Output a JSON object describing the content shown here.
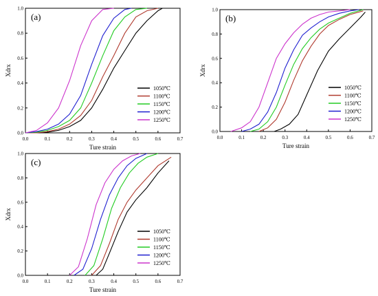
{
  "chart_data": [
    {
      "type": "line",
      "panel_label": "(a)",
      "xlabel": "Ture strain",
      "ylabel": "Xdrx",
      "xlim": [
        0.0,
        0.7
      ],
      "ylim": [
        0.0,
        1.0
      ],
      "x_ticks": [
        "0.0",
        "0.1",
        "0.2",
        "0.3",
        "0.4",
        "0.5",
        "0.6",
        "0.7"
      ],
      "y_ticks": [
        "0.0",
        "0.2",
        "0.4",
        "0.6",
        "0.8",
        "1.0"
      ],
      "legend_position": "lower-right",
      "series": [
        {
          "name": "1050℃",
          "color": "#000000",
          "x": [
            0.0,
            0.05,
            0.1,
            0.15,
            0.2,
            0.25,
            0.3,
            0.35,
            0.4,
            0.45,
            0.5,
            0.55,
            0.6,
            0.62
          ],
          "y": [
            0.0,
            0.0,
            0.005,
            0.02,
            0.05,
            0.1,
            0.2,
            0.35,
            0.52,
            0.66,
            0.8,
            0.9,
            0.98,
            1.0
          ]
        },
        {
          "name": "1100℃",
          "color": "#b03a2e",
          "x": [
            0.0,
            0.05,
            0.1,
            0.15,
            0.2,
            0.25,
            0.3,
            0.35,
            0.4,
            0.45,
            0.5,
            0.55,
            0.6
          ],
          "y": [
            0.0,
            0.0,
            0.01,
            0.03,
            0.07,
            0.14,
            0.26,
            0.45,
            0.62,
            0.8,
            0.93,
            0.98,
            1.0
          ]
        },
        {
          "name": "1150℃",
          "color": "#22cc22",
          "x": [
            0.0,
            0.05,
            0.1,
            0.15,
            0.2,
            0.25,
            0.3,
            0.35,
            0.4,
            0.45,
            0.5,
            0.55
          ],
          "y": [
            0.0,
            0.005,
            0.02,
            0.05,
            0.1,
            0.2,
            0.4,
            0.62,
            0.82,
            0.93,
            0.99,
            1.0
          ]
        },
        {
          "name": "1200℃",
          "color": "#1f1fd0",
          "x": [
            0.0,
            0.05,
            0.1,
            0.15,
            0.2,
            0.25,
            0.3,
            0.35,
            0.4,
            0.45,
            0.48
          ],
          "y": [
            0.0,
            0.01,
            0.03,
            0.07,
            0.15,
            0.3,
            0.55,
            0.78,
            0.92,
            0.99,
            1.0
          ]
        },
        {
          "name": "1250℃",
          "color": "#cc33cc",
          "x": [
            0.0,
            0.05,
            0.1,
            0.15,
            0.2,
            0.25,
            0.3,
            0.35,
            0.4
          ],
          "y": [
            0.0,
            0.02,
            0.08,
            0.2,
            0.42,
            0.7,
            0.9,
            0.99,
            1.0
          ]
        }
      ]
    },
    {
      "type": "line",
      "panel_label": "(b)",
      "xlabel": "Ture strain",
      "ylabel": "Xdrx",
      "xlim": [
        0.0,
        0.7
      ],
      "ylim": [
        0.0,
        1.0
      ],
      "x_ticks": [
        "0.0",
        "0.1",
        "0.2",
        "0.3",
        "0.4",
        "0.5",
        "0.6",
        "0.7"
      ],
      "y_ticks": [
        "0.0",
        "0.2",
        "0.4",
        "0.6",
        "0.8",
        "1.0"
      ],
      "legend_position": "lower-right",
      "series": [
        {
          "name": "1050℃",
          "color": "#000000",
          "x": [
            0.25,
            0.28,
            0.32,
            0.36,
            0.4,
            0.45,
            0.5,
            0.55,
            0.6,
            0.65,
            0.67
          ],
          "y": [
            0.0,
            0.02,
            0.06,
            0.14,
            0.3,
            0.5,
            0.66,
            0.76,
            0.85,
            0.94,
            0.98
          ]
        },
        {
          "name": "1100℃",
          "color": "#b03a2e",
          "x": [
            0.18,
            0.22,
            0.26,
            0.3,
            0.34,
            0.38,
            0.42,
            0.46,
            0.5,
            0.55,
            0.6,
            0.66
          ],
          "y": [
            0.0,
            0.03,
            0.1,
            0.24,
            0.42,
            0.58,
            0.7,
            0.8,
            0.87,
            0.92,
            0.96,
            0.99
          ]
        },
        {
          "name": "1150℃",
          "color": "#22cc22",
          "x": [
            0.14,
            0.18,
            0.22,
            0.26,
            0.3,
            0.34,
            0.38,
            0.42,
            0.46,
            0.5,
            0.55,
            0.6,
            0.66
          ],
          "y": [
            0.0,
            0.02,
            0.08,
            0.2,
            0.38,
            0.55,
            0.68,
            0.77,
            0.84,
            0.89,
            0.93,
            0.97,
            1.0
          ]
        },
        {
          "name": "1200℃",
          "color": "#1f1fd0",
          "x": [
            0.1,
            0.14,
            0.18,
            0.22,
            0.26,
            0.3,
            0.34,
            0.38,
            0.42,
            0.46,
            0.5,
            0.55,
            0.6,
            0.64
          ],
          "y": [
            0.0,
            0.02,
            0.06,
            0.16,
            0.32,
            0.52,
            0.67,
            0.79,
            0.85,
            0.9,
            0.94,
            0.97,
            0.99,
            1.0
          ]
        },
        {
          "name": "1250℃",
          "color": "#cc33cc",
          "x": [
            0.05,
            0.1,
            0.14,
            0.18,
            0.22,
            0.26,
            0.3,
            0.34,
            0.38,
            0.42,
            0.46,
            0.5,
            0.55,
            0.6
          ],
          "y": [
            0.0,
            0.03,
            0.08,
            0.2,
            0.4,
            0.6,
            0.72,
            0.81,
            0.88,
            0.93,
            0.96,
            0.98,
            0.99,
            1.0
          ]
        }
      ]
    },
    {
      "type": "line",
      "panel_label": "(c)",
      "xlabel": "Ture strain",
      "ylabel": "Xdrx",
      "xlim": [
        0.0,
        0.7
      ],
      "ylim": [
        0.0,
        1.0
      ],
      "x_ticks": [
        "0.0",
        "0.1",
        "0.2",
        "0.3",
        "0.4",
        "0.5",
        "0.6",
        "0.7"
      ],
      "y_ticks": [
        "0.0",
        "0.2",
        "0.4",
        "0.6",
        "0.8",
        "1.0"
      ],
      "legend_position": "lower-right",
      "series": [
        {
          "name": "1050℃",
          "color": "#000000",
          "x": [
            0.32,
            0.35,
            0.38,
            0.42,
            0.46,
            0.5,
            0.55,
            0.6,
            0.65
          ],
          "y": [
            0.0,
            0.05,
            0.18,
            0.36,
            0.52,
            0.62,
            0.72,
            0.84,
            0.94
          ]
        },
        {
          "name": "1100℃",
          "color": "#b03a2e",
          "x": [
            0.3,
            0.34,
            0.38,
            0.42,
            0.46,
            0.5,
            0.55,
            0.6,
            0.66
          ],
          "y": [
            0.0,
            0.08,
            0.26,
            0.46,
            0.6,
            0.7,
            0.8,
            0.9,
            0.97
          ]
        },
        {
          "name": "1150℃",
          "color": "#22cc22",
          "x": [
            0.27,
            0.31,
            0.35,
            0.39,
            0.43,
            0.47,
            0.51,
            0.55,
            0.6
          ],
          "y": [
            0.0,
            0.08,
            0.3,
            0.55,
            0.72,
            0.84,
            0.92,
            0.97,
            1.0
          ]
        },
        {
          "name": "1200℃",
          "color": "#1f1fd0",
          "x": [
            0.22,
            0.26,
            0.3,
            0.34,
            0.38,
            0.42,
            0.46,
            0.5,
            0.55
          ],
          "y": [
            0.0,
            0.05,
            0.22,
            0.46,
            0.66,
            0.8,
            0.9,
            0.96,
            1.0
          ]
        },
        {
          "name": "1250℃",
          "color": "#cc33cc",
          "x": [
            0.2,
            0.24,
            0.28,
            0.32,
            0.36,
            0.4,
            0.44,
            0.48,
            0.52
          ],
          "y": [
            0.0,
            0.07,
            0.3,
            0.58,
            0.76,
            0.87,
            0.94,
            0.98,
            1.0
          ]
        }
      ]
    }
  ]
}
